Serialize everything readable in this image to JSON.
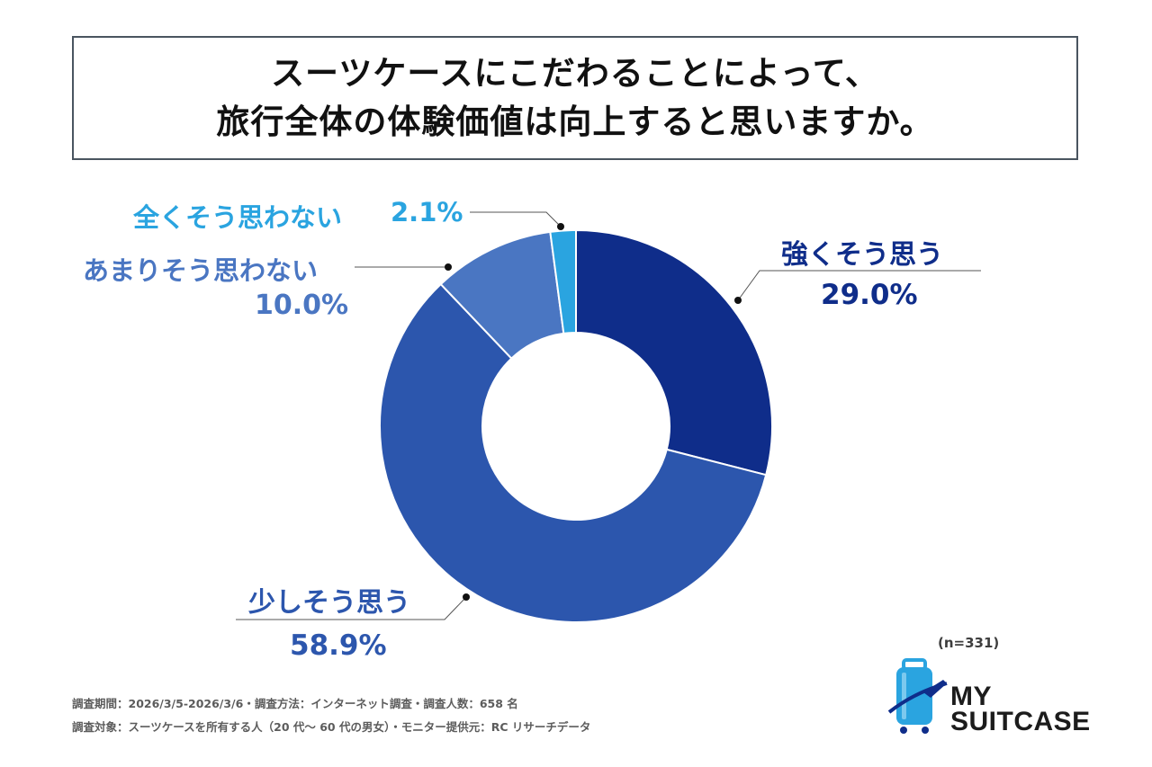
{
  "title": {
    "line1": "スーツケースにこだわることによって、",
    "line2": "旅行全体の体験価値は向上すると思いますか。"
  },
  "chart_data": {
    "type": "pie",
    "subtype": "donut",
    "start_angle_deg": 0,
    "direction": "clockwise",
    "slices": [
      {
        "label": "強くそう思う",
        "value": 29.0,
        "value_label": "29.0%",
        "color": "#0f2d8a"
      },
      {
        "label": "少しそう思う",
        "value": 58.9,
        "value_label": "58.9%",
        "color": "#2c56ad"
      },
      {
        "label": "あまりそう思わない",
        "value": 10.0,
        "value_label": "10.0%",
        "color": "#4a76c2"
      },
      {
        "label": "全くそう思わない",
        "value": 2.1,
        "value_label": "2.1%",
        "color": "#2aa4e0"
      }
    ]
  },
  "labels": {
    "strong": {
      "name": "強くそう思う",
      "value": "29.0%",
      "color": "#0f2d8a"
    },
    "slight": {
      "name": "少しそう思う",
      "value": "58.9%",
      "color": "#2c56ad"
    },
    "notmuch": {
      "name": "あまりそう思わない",
      "value": "10.0%",
      "color": "#4a76c2"
    },
    "notatall": {
      "name": "全くそう思わない",
      "value": "2.1%",
      "color": "#2aa4e0"
    }
  },
  "sample_size": "(n=331)",
  "footer": {
    "line1": "調査期間：2026/3/5-2026/3/6・調査方法：インターネット調査・調査人数：658 名",
    "line2": "調査対象：スーツケースを所有する人（20 代〜 60 代の男女）・モニター提供元：RC リサーチデータ"
  },
  "logo": {
    "line1": "MY",
    "line2": "SUITCASE"
  }
}
